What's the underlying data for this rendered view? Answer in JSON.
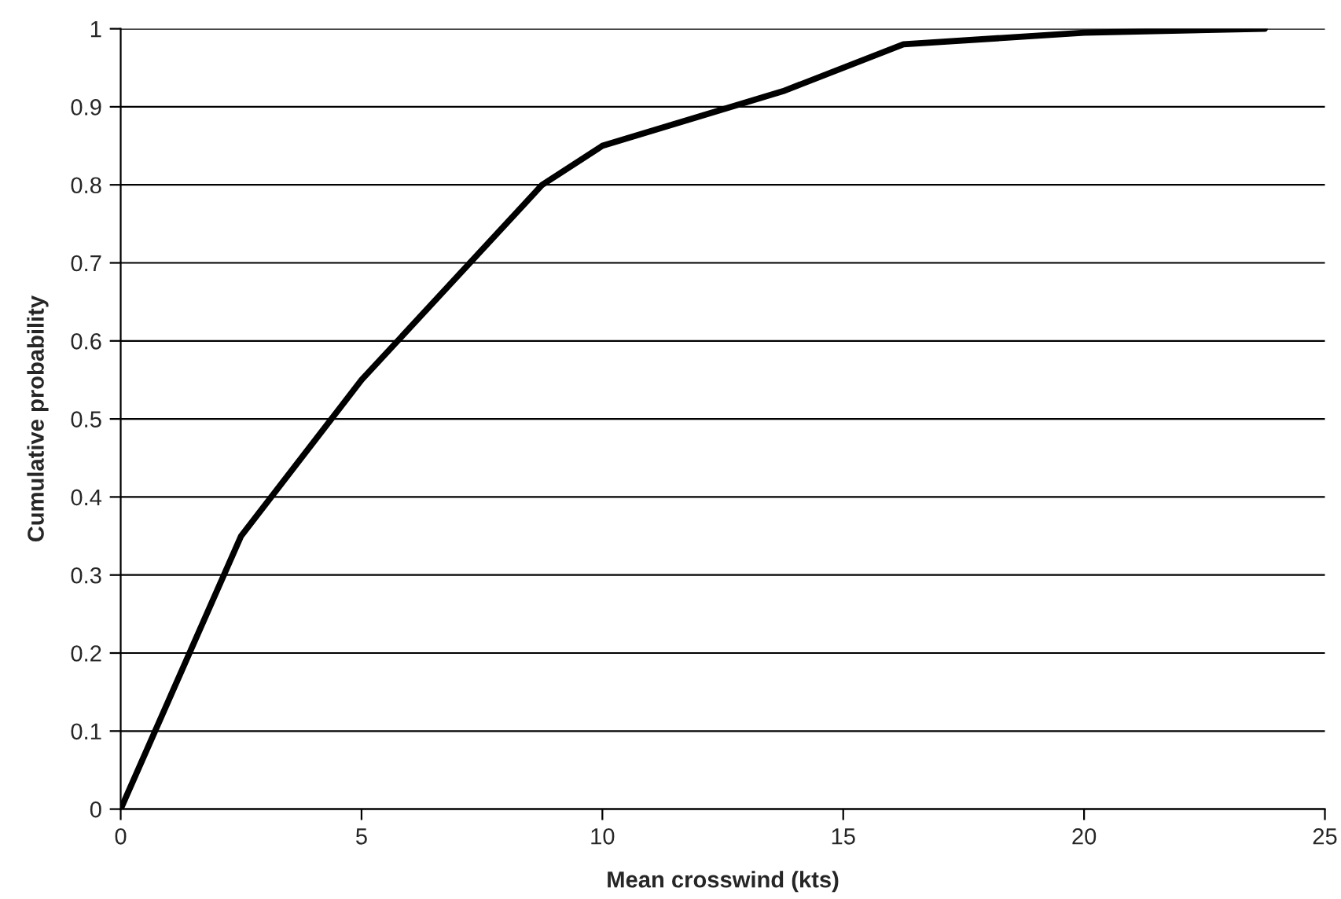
{
  "chart_data": {
    "type": "line",
    "xlabel": "Mean crosswind (kts)",
    "ylabel": "Cumulative probability",
    "series": [
      {
        "color": "#000000",
        "x": [
          0,
          2.5,
          5,
          8.75,
          10,
          13.75,
          16.25,
          20,
          23.75
        ],
        "values": [
          0,
          0.35,
          0.55,
          0.8,
          0.85,
          0.92,
          0.98,
          0.995,
          1.0
        ]
      }
    ],
    "xlim": [
      0,
      25
    ],
    "xticks": [
      0,
      5,
      10,
      15,
      20,
      25
    ],
    "ylim": [
      0,
      1
    ],
    "yticks": [
      0,
      0.1,
      0.2,
      0.3,
      0.4,
      0.5,
      0.6,
      0.7,
      0.8,
      0.9,
      1
    ],
    "grid": "y",
    "marker": "none",
    "line_style": "solid",
    "legend": false
  }
}
